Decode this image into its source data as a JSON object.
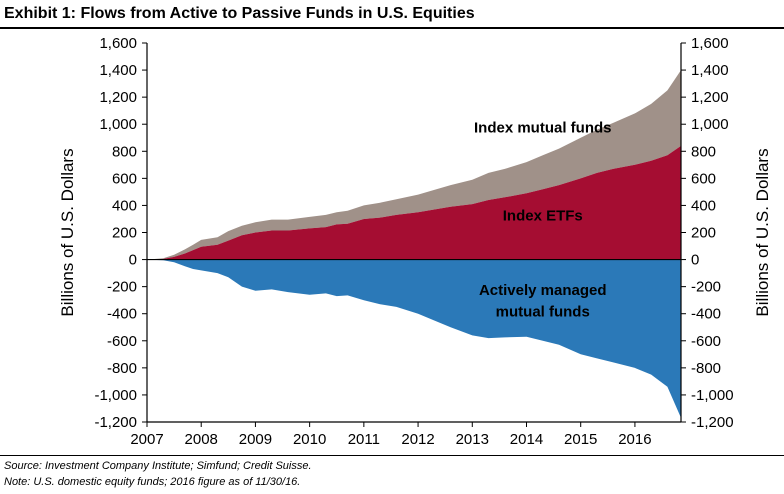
{
  "header": {
    "title": "Exhibit 1: Flows from Active to Passive Funds in U.S. Equities"
  },
  "footer": {
    "source": "Source: Investment Company Institute; Simfund; Credit Suisse.",
    "note": "Note: U.S. domestic equity funds; 2016 figure as of 11/30/16."
  },
  "chart_data": {
    "type": "area",
    "title": "Exhibit 1: Flows from Active to Passive Funds in U.S. Equities",
    "xlabel": "",
    "ylabel": "Billions of U.S. Dollars",
    "ylabel_right": "Billions of U.S. Dollars",
    "xlim": [
      2007,
      2016.85
    ],
    "ylim": [
      -1200,
      1600
    ],
    "x_ticks": [
      "2007",
      "2008",
      "2009",
      "2010",
      "2011",
      "2012",
      "2013",
      "2014",
      "2015",
      "2016"
    ],
    "y_ticks": [
      "1,600",
      "1,400",
      "1,200",
      "1,000",
      "800",
      "600",
      "400",
      "200",
      "0",
      "-200",
      "-400",
      "-600",
      "-800",
      "-1,000",
      "-1,200"
    ],
    "y_tick_values": [
      1600,
      1400,
      1200,
      1000,
      800,
      600,
      400,
      200,
      0,
      -200,
      -400,
      -600,
      -800,
      -1000,
      -1200
    ],
    "grid": false,
    "annotations": [
      {
        "text": "Index mutual funds",
        "x": 2014.3,
        "y": 940
      },
      {
        "text": "Index ETFs",
        "x": 2014.3,
        "y": 290
      },
      {
        "text": "Actively managed",
        "x": 2014.3,
        "y": -260
      },
      {
        "text": "mutual funds",
        "x": 2014.3,
        "y": -420
      }
    ],
    "series": [
      {
        "name": "Index ETFs",
        "color": "#a50d32",
        "x": [
          2007.0,
          2007.3,
          2007.5,
          2007.7,
          2007.85,
          2008.0,
          2008.3,
          2008.5,
          2008.75,
          2009.0,
          2009.3,
          2009.6,
          2010.0,
          2010.3,
          2010.5,
          2010.7,
          2011.0,
          2011.3,
          2011.6,
          2012.0,
          2012.3,
          2012.6,
          2013.0,
          2013.3,
          2013.6,
          2014.0,
          2014.3,
          2014.6,
          2015.0,
          2015.3,
          2015.6,
          2016.0,
          2016.3,
          2016.6,
          2016.85
        ],
        "values": [
          0,
          5,
          20,
          45,
          70,
          95,
          110,
          140,
          180,
          200,
          215,
          215,
          230,
          240,
          260,
          265,
          300,
          310,
          330,
          350,
          370,
          390,
          410,
          440,
          460,
          490,
          520,
          550,
          600,
          640,
          670,
          700,
          730,
          770,
          840
        ]
      },
      {
        "name": "Index mutual funds",
        "color": "#a09189",
        "x": [
          2007.0,
          2007.3,
          2007.5,
          2007.7,
          2007.85,
          2008.0,
          2008.3,
          2008.5,
          2008.75,
          2009.0,
          2009.3,
          2009.6,
          2010.0,
          2010.3,
          2010.5,
          2010.7,
          2011.0,
          2011.3,
          2011.6,
          2012.0,
          2012.3,
          2012.6,
          2013.0,
          2013.3,
          2013.6,
          2014.0,
          2014.3,
          2014.6,
          2015.0,
          2015.3,
          2015.6,
          2016.0,
          2016.3,
          2016.6,
          2016.85
        ],
        "values": [
          0,
          5,
          15,
          30,
          40,
          50,
          55,
          70,
          70,
          75,
          80,
          80,
          85,
          90,
          90,
          95,
          100,
          110,
          115,
          130,
          145,
          160,
          180,
          200,
          210,
          230,
          250,
          270,
          300,
          320,
          340,
          380,
          420,
          480,
          560
        ]
      },
      {
        "name": "Actively managed mutual funds",
        "color": "#2b79b8",
        "x": [
          2007.0,
          2007.3,
          2007.5,
          2007.7,
          2007.85,
          2008.0,
          2008.3,
          2008.5,
          2008.75,
          2009.0,
          2009.3,
          2009.6,
          2010.0,
          2010.3,
          2010.5,
          2010.7,
          2011.0,
          2011.3,
          2011.6,
          2012.0,
          2012.3,
          2012.6,
          2013.0,
          2013.3,
          2013.6,
          2014.0,
          2014.3,
          2014.6,
          2015.0,
          2015.3,
          2015.6,
          2016.0,
          2016.3,
          2016.6,
          2016.85
        ],
        "values": [
          0,
          -5,
          -20,
          -50,
          -70,
          -80,
          -100,
          -130,
          -200,
          -230,
          -220,
          -240,
          -260,
          -250,
          -270,
          -265,
          -300,
          -330,
          -350,
          -400,
          -450,
          -500,
          -560,
          -580,
          -575,
          -570,
          -600,
          -630,
          -700,
          -730,
          -760,
          -800,
          -850,
          -940,
          -1170
        ]
      }
    ]
  }
}
